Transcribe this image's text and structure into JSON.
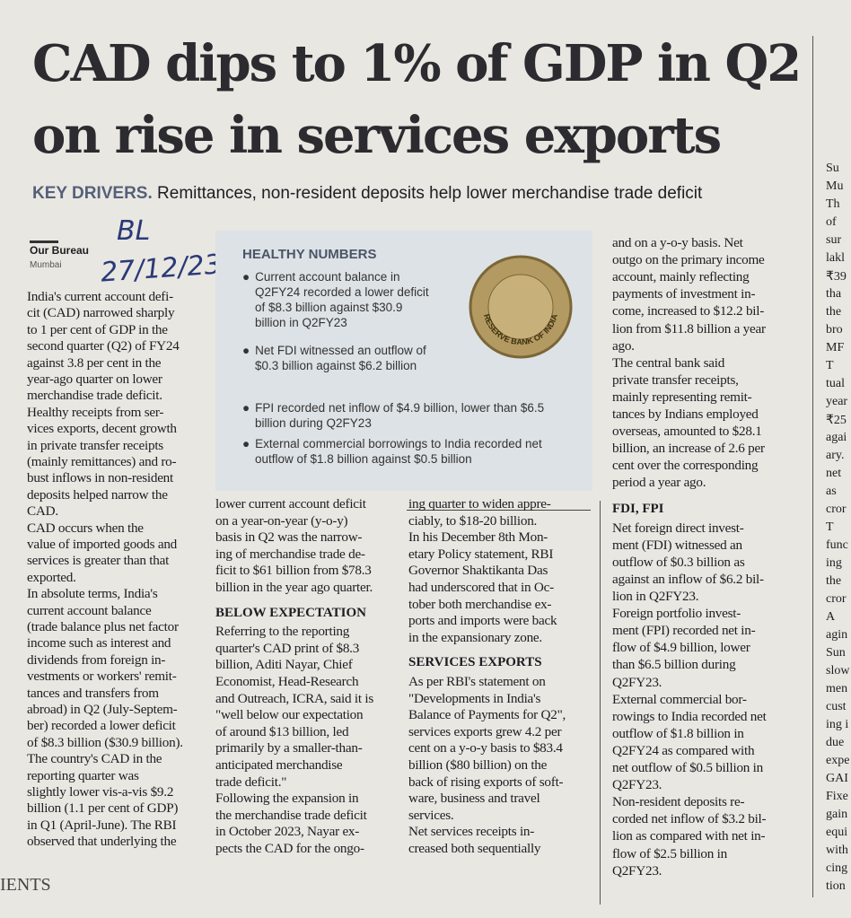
{
  "header": {
    "headline": [
      "CAD dips to 1% of GDP in Q2",
      "on rise in services exports"
    ],
    "kicker": "KEY DRIVERS.",
    "deck": "Remittances, non-resident deposits help lower merchandise trade deficit",
    "byline": "Our Bureau",
    "dateline": "Mumbai",
    "handwriting": [
      "BL",
      "27/12/23"
    ]
  },
  "box": {
    "title": "HEALTHY NUMBERS",
    "bullets": [
      "Current account balance in Q2FY24 recorded a lower deficit of $8.3 billion against $30.9 billion in Q2FY23",
      "Net FDI witnessed an outflow of $0.3 billion against $6.2 billion",
      "FPI recorded net inflow of $4.9 billion, lower than $6.5 billion during Q2FY23",
      "External commercial borrowings to India recorded net outflow of $1.8 billion against $0.5 billion"
    ],
    "seal": "RESERVE BANK OF INDIA"
  },
  "columns": [
    {
      "lines": [
        "India's current account defi-",
        "cit (CAD) narrowed sharply",
        "to 1 per cent of GDP in the",
        "second quarter (Q2) of FY24",
        "against 3.8 per cent in the",
        "year-ago quarter on lower",
        "merchandise trade deficit.",
        "Healthy receipts from ser-",
        "vices exports, decent growth",
        "in private transfer receipts",
        "(mainly remittances) and ro-",
        "bust inflows in non-resident",
        "deposits helped narrow the",
        "CAD.",
        "CAD occurs when the",
        "value of imported goods and",
        "services is greater than that",
        "exported.",
        "In absolute terms, India's",
        "current account balance",
        "(trade balance plus net factor",
        "income such as interest and",
        "dividends from foreign in-",
        "vestments or workers' remit-",
        "tances and transfers from",
        "abroad) in Q2 (July-Septem-",
        "ber) recorded a lower deficit",
        "of $8.3 billion ($30.9 billion).",
        "The country's CAD in the",
        "reporting quarter was",
        "slightly lower vis-a-vis $9.2",
        "billion (1.1 per cent of GDP)",
        "in Q1 (April-June). The RBI",
        "observed that underlying the"
      ]
    },
    {
      "lines": [
        "lower current account deficit",
        "on a year-on-year (y-o-y)",
        "basis in Q2 was the narrow-",
        "ing of merchandise trade de-",
        "ficit to $61 billion from $78.3",
        "billion in the year ago quarter.",
        {
          "heading": "BELOW EXPECTATION"
        },
        "Referring to the reporting",
        "quarter's CAD print of $8.3",
        "billion, Aditi Nayar, Chief",
        "Economist, Head-Research",
        "and Outreach, ICRA, said it is",
        "\"well below our expectation",
        "of around $13 billion, led",
        "primarily by a smaller-than-",
        "anticipated merchandise",
        "trade deficit.\"",
        "Following the expansion in",
        "the merchandise trade deficit",
        "in October 2023, Nayar ex-",
        "pects the CAD for the ongo-"
      ]
    },
    {
      "lines": [
        "ing quarter to widen appre-",
        "ciably, to $18-20 billion.",
        "In his December 8th Mon-",
        "etary Policy statement, RBI",
        "Governor Shaktikanta Das",
        "had underscored that in Oc-",
        "tober both merchandise ex-",
        "ports and imports were back",
        "in the expansionary zone.",
        {
          "heading": "SERVICES EXPORTS"
        },
        "As per RBI's statement on",
        "\"Developments in India's",
        "Balance of Payments for Q2\",",
        "services exports grew 4.2 per",
        "cent on a y-o-y basis to $83.4",
        "billion ($80 billion) on the",
        "back of rising exports of soft-",
        "ware, business and travel",
        "services.",
        "Net services receipts in-",
        "creased both sequentially"
      ]
    },
    {
      "lines": [
        "and on a y-o-y basis. Net",
        "outgo on the primary income",
        "account, mainly reflecting",
        "payments of investment in-",
        "come, increased to $12.2 bil-",
        "lion from $11.8 billion a year",
        "ago.",
        "The central bank said",
        "private transfer receipts,",
        "mainly representing remit-",
        "tances by Indians employed",
        "overseas, amounted to $28.1",
        "billion, an increase of 2.6 per",
        "cent over the corresponding",
        "period a year ago.",
        {
          "heading": "FDI, FPI"
        },
        "Net foreign direct invest-",
        "ment (FDI) witnessed an",
        "outflow of $0.3 billion as",
        "against an inflow of $6.2 bil-",
        "lion in Q2FY23.",
        "Foreign portfolio invest-",
        "ment (FPI) recorded net in-",
        "flow of $4.9 billion, lower",
        "than $6.5 billion during",
        "Q2FY23.",
        "External commercial bor-",
        "rowings to India recorded net",
        "outflow of $1.8 billion in",
        "Q2FY24 as compared with",
        "net outflow of $0.5 billion in",
        "Q2FY23.",
        "Non-resident deposits re-",
        "corded net inflow of $3.2 bil-",
        "lion as compared with net in-",
        "flow of $2.5 billion in",
        "Q2FY23."
      ]
    }
  ],
  "next_column": [
    "Su",
    "Mu",
    "Th",
    "of",
    "sur",
    "lakl",
    "₹39",
    "tha",
    "the",
    "bro",
    "MF",
    "T",
    "tual",
    "year",
    "₹25",
    "agai",
    "ary.",
    "net",
    "as",
    "cror",
    "T",
    "func",
    "ing",
    "the",
    "cror",
    "A",
    "agin",
    "Sun",
    "slow",
    "men",
    "cust",
    "ing i",
    "due",
    "expe",
    "GAI",
    "Fixe",
    "gain",
    "equi",
    "with",
    "cing",
    "tion"
  ],
  "footer_fragment": "IENTS"
}
